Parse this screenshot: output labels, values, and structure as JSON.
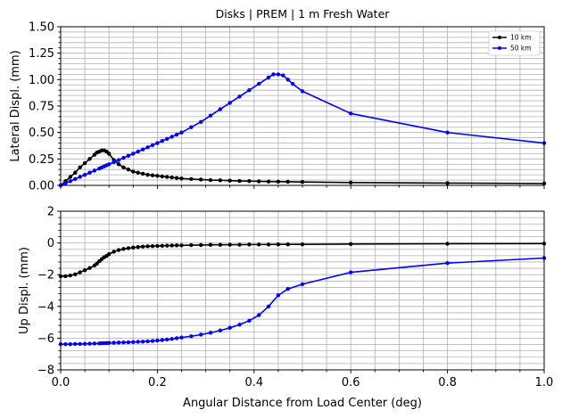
{
  "chart_data": [
    {
      "type": "line",
      "title": "Disks | PREM | 1 m Fresh Water",
      "xlabel": "",
      "ylabel": "Lateral Displ. (mm)",
      "xlim": [
        0,
        1
      ],
      "ylim": [
        0,
        1.5
      ],
      "xticks": [
        "",
        "",
        "",
        "",
        "",
        ""
      ],
      "yticks": [
        "0.00",
        "0.25",
        "0.50",
        "0.75",
        "1.00",
        "1.25",
        "1.50"
      ],
      "ytick_values": [
        0,
        0.25,
        0.5,
        0.75,
        1.0,
        1.25,
        1.5
      ],
      "grid": true,
      "legend": "upper-right",
      "series": [
        {
          "name": "10 km",
          "color": "#000000",
          "x": [
            0.0,
            0.01,
            0.02,
            0.03,
            0.04,
            0.05,
            0.06,
            0.07,
            0.075,
            0.08,
            0.085,
            0.09,
            0.095,
            0.1,
            0.11,
            0.12,
            0.13,
            0.14,
            0.15,
            0.16,
            0.17,
            0.18,
            0.19,
            0.2,
            0.21,
            0.22,
            0.23,
            0.24,
            0.25,
            0.27,
            0.29,
            0.31,
            0.33,
            0.35,
            0.37,
            0.39,
            0.41,
            0.43,
            0.45,
            0.47,
            0.5,
            0.6,
            0.8,
            1.0
          ],
          "y": [
            0.0,
            0.04,
            0.08,
            0.12,
            0.17,
            0.21,
            0.25,
            0.29,
            0.31,
            0.32,
            0.33,
            0.33,
            0.32,
            0.3,
            0.24,
            0.2,
            0.17,
            0.15,
            0.13,
            0.12,
            0.11,
            0.1,
            0.095,
            0.09,
            0.085,
            0.08,
            0.075,
            0.07,
            0.065,
            0.06,
            0.055,
            0.05,
            0.048,
            0.045,
            0.042,
            0.04,
            0.038,
            0.036,
            0.035,
            0.034,
            0.032,
            0.027,
            0.022,
            0.018
          ]
        },
        {
          "name": "50 km",
          "color": "#0000ff",
          "x": [
            0.0,
            0.01,
            0.02,
            0.03,
            0.04,
            0.05,
            0.06,
            0.07,
            0.08,
            0.085,
            0.09,
            0.095,
            0.1,
            0.11,
            0.12,
            0.13,
            0.14,
            0.15,
            0.16,
            0.17,
            0.18,
            0.19,
            0.2,
            0.21,
            0.22,
            0.23,
            0.24,
            0.25,
            0.27,
            0.29,
            0.31,
            0.33,
            0.35,
            0.37,
            0.39,
            0.41,
            0.43,
            0.44,
            0.45,
            0.46,
            0.47,
            0.48,
            0.5,
            0.6,
            0.8,
            1.0
          ],
          "y": [
            0.0,
            0.02,
            0.04,
            0.06,
            0.08,
            0.1,
            0.12,
            0.14,
            0.16,
            0.17,
            0.18,
            0.19,
            0.2,
            0.22,
            0.24,
            0.26,
            0.28,
            0.3,
            0.32,
            0.34,
            0.36,
            0.38,
            0.4,
            0.42,
            0.44,
            0.46,
            0.48,
            0.5,
            0.55,
            0.6,
            0.66,
            0.72,
            0.78,
            0.84,
            0.9,
            0.96,
            1.02,
            1.05,
            1.05,
            1.04,
            1.0,
            0.96,
            0.89,
            0.68,
            0.5,
            0.4
          ]
        }
      ]
    },
    {
      "type": "line",
      "title": "",
      "xlabel": "Angular Distance from Load Center (deg)",
      "ylabel": "Up Displ. (mm)",
      "xlim": [
        0,
        1
      ],
      "ylim": [
        -8,
        2
      ],
      "xticks": [
        "0.0",
        "0.2",
        "0.4",
        "0.6",
        "0.8",
        "1.0"
      ],
      "yticks": [
        "−8",
        "−6",
        "−4",
        "−2",
        "0",
        "2"
      ],
      "ytick_values": [
        -8,
        -6,
        -4,
        -2,
        0,
        2
      ],
      "grid": true,
      "series": [
        {
          "name": "",
          "color": "#000000",
          "x": [
            0.0,
            0.01,
            0.02,
            0.03,
            0.04,
            0.05,
            0.06,
            0.07,
            0.075,
            0.08,
            0.085,
            0.09,
            0.095,
            0.1,
            0.11,
            0.12,
            0.13,
            0.14,
            0.15,
            0.16,
            0.17,
            0.18,
            0.19,
            0.2,
            0.21,
            0.22,
            0.23,
            0.24,
            0.25,
            0.27,
            0.29,
            0.31,
            0.33,
            0.35,
            0.37,
            0.39,
            0.41,
            0.43,
            0.45,
            0.47,
            0.5,
            0.6,
            0.8,
            1.0
          ],
          "y": [
            -2.1,
            -2.1,
            -2.05,
            -1.98,
            -1.85,
            -1.72,
            -1.58,
            -1.42,
            -1.3,
            -1.15,
            -1.02,
            -0.9,
            -0.82,
            -0.7,
            -0.55,
            -0.45,
            -0.38,
            -0.33,
            -0.29,
            -0.26,
            -0.23,
            -0.21,
            -0.2,
            -0.19,
            -0.18,
            -0.17,
            -0.16,
            -0.15,
            -0.15,
            -0.14,
            -0.13,
            -0.12,
            -0.12,
            -0.11,
            -0.11,
            -0.1,
            -0.1,
            -0.1,
            -0.09,
            -0.09,
            -0.09,
            -0.07,
            -0.05,
            -0.04
          ]
        },
        {
          "name": "",
          "color": "#0000ff",
          "x": [
            0.0,
            0.01,
            0.02,
            0.03,
            0.04,
            0.05,
            0.06,
            0.07,
            0.08,
            0.085,
            0.09,
            0.095,
            0.1,
            0.11,
            0.12,
            0.13,
            0.14,
            0.15,
            0.16,
            0.17,
            0.18,
            0.19,
            0.2,
            0.21,
            0.22,
            0.23,
            0.24,
            0.25,
            0.27,
            0.29,
            0.31,
            0.33,
            0.35,
            0.37,
            0.39,
            0.41,
            0.43,
            0.45,
            0.47,
            0.5,
            0.6,
            0.8,
            1.0
          ],
          "y": [
            -6.38,
            -6.38,
            -6.38,
            -6.37,
            -6.37,
            -6.36,
            -6.35,
            -6.34,
            -6.33,
            -6.32,
            -6.32,
            -6.31,
            -6.3,
            -6.29,
            -6.28,
            -6.27,
            -6.26,
            -6.25,
            -6.23,
            -6.22,
            -6.2,
            -6.18,
            -6.15,
            -6.12,
            -6.09,
            -6.05,
            -6.0,
            -5.96,
            -5.88,
            -5.78,
            -5.66,
            -5.52,
            -5.35,
            -5.15,
            -4.9,
            -4.55,
            -4.0,
            -3.3,
            -2.9,
            -2.6,
            -1.85,
            -1.27,
            -0.95
          ]
        }
      ]
    }
  ]
}
